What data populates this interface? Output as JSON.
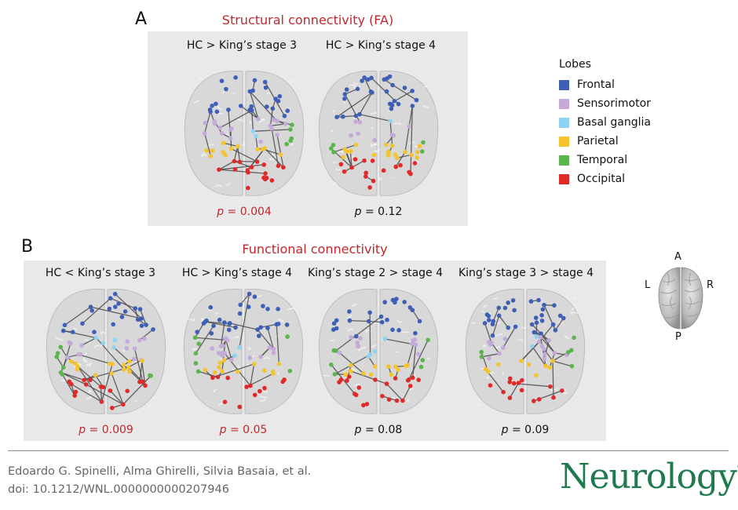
{
  "panel_a": {
    "letter": "A",
    "title": "Structural connectivity (FA)",
    "brains": [
      {
        "label": "HC > King’s stage 3",
        "p_prefix": "p",
        "p_value": " = 0.004",
        "significant": true
      },
      {
        "label": "HC > King’s stage 4",
        "p_prefix": "p",
        "p_value": " = 0.12",
        "significant": false
      }
    ]
  },
  "panel_b": {
    "letter": "B",
    "title": "Functional connectivity",
    "brains": [
      {
        "label": "HC < King’s stage 3",
        "p_prefix": "p",
        "p_value": " = 0.009",
        "significant": true
      },
      {
        "label": "HC > King’s stage 4",
        "p_prefix": "p",
        "p_value": " = 0.05",
        "significant": true
      },
      {
        "label": "King’s stage 2 > stage 4",
        "p_prefix": "p",
        "p_value": " = 0.08",
        "significant": false
      },
      {
        "label": "King’s stage 3 > stage 4",
        "p_prefix": "p",
        "p_value": " = 0.09",
        "significant": false
      }
    ]
  },
  "legend": {
    "title": "Lobes",
    "items": [
      {
        "label": "Frontal",
        "color": "#3f5fb5"
      },
      {
        "label": "Sensorimotor",
        "color": "#c5a9d9"
      },
      {
        "label": "Basal ganglia",
        "color": "#8fd3f2"
      },
      {
        "label": "Parietal",
        "color": "#f4c430"
      },
      {
        "label": "Temporal",
        "color": "#5ab54b"
      },
      {
        "label": "Occipital",
        "color": "#e02a2a"
      }
    ]
  },
  "orientation": {
    "anterior": "A",
    "posterior": "P",
    "left": "L",
    "right": "R"
  },
  "footer": {
    "authors": "Edoardo G. Spinelli, Alma Ghirelli, Silvia Basaia, et al.",
    "doi": "doi: 10.1212/WNL.0000000000207946",
    "journal": "Neurology",
    "registered": "®"
  },
  "colors": {
    "significant": "#c0282d",
    "journal": "#1f7a4d"
  }
}
